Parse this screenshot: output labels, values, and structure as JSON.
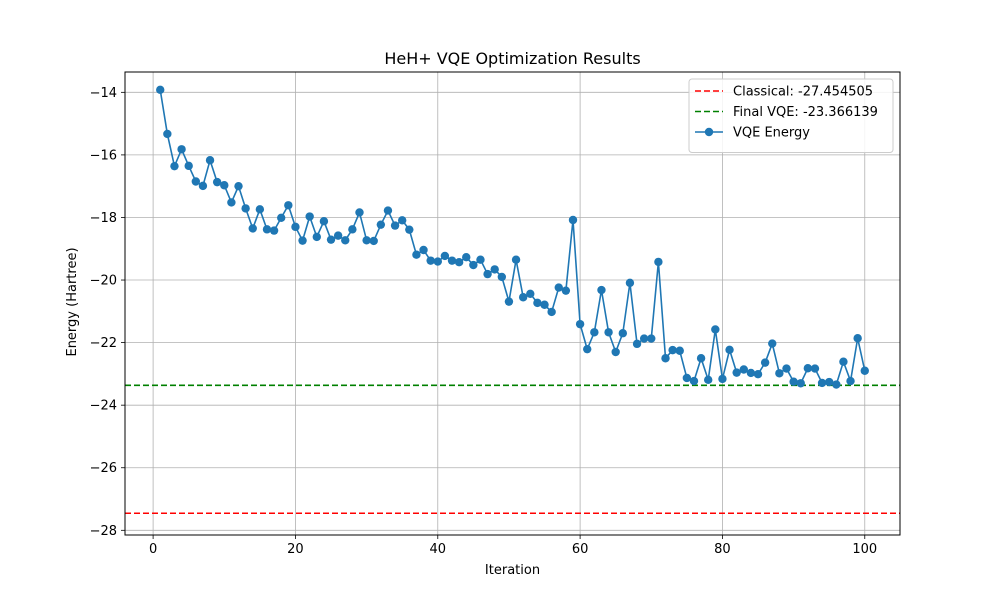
{
  "chart_data": {
    "type": "line",
    "title": "HeH+ VQE Optimization Results",
    "xlabel": "Iteration",
    "ylabel": "Energy (Hartree)",
    "xlim": [
      -3.95,
      104.95
    ],
    "ylim": [
      -28.15,
      -13.35
    ],
    "xticks": [
      0,
      20,
      40,
      60,
      80,
      100
    ],
    "yticks": [
      -28,
      -26,
      -24,
      -22,
      -20,
      -18,
      -16,
      -14
    ],
    "xtick_labels": [
      "0",
      "20",
      "40",
      "60",
      "80",
      "100"
    ],
    "ytick_labels": [
      "−28",
      "−26",
      "−24",
      "−22",
      "−20",
      "−18",
      "−16",
      "−14"
    ],
    "grid": true,
    "legend_position": "top-right",
    "series": [
      {
        "name": "VQE Energy",
        "color": "#1f77b4",
        "marker": "circle",
        "x": [
          1,
          2,
          3,
          4,
          5,
          6,
          7,
          8,
          9,
          10,
          11,
          12,
          13,
          14,
          15,
          16,
          17,
          18,
          19,
          20,
          21,
          22,
          23,
          24,
          25,
          26,
          27,
          28,
          29,
          30,
          31,
          32,
          33,
          34,
          35,
          36,
          37,
          38,
          39,
          40,
          41,
          42,
          43,
          44,
          45,
          46,
          47,
          48,
          49,
          50,
          51,
          52,
          53,
          54,
          55,
          56,
          57,
          58,
          59,
          60,
          61,
          62,
          63,
          64,
          65,
          66,
          67,
          68,
          69,
          70,
          71,
          72,
          73,
          74,
          75,
          76,
          77,
          78,
          79,
          80,
          81,
          82,
          83,
          84,
          85,
          86,
          87,
          88,
          89,
          90,
          91,
          92,
          93,
          94,
          95,
          96,
          97,
          98,
          99,
          100
        ],
        "y": [
          -13.92,
          -15.33,
          -16.36,
          -15.82,
          -16.35,
          -16.85,
          -16.99,
          -16.17,
          -16.87,
          -16.97,
          -17.52,
          -17.0,
          -17.71,
          -18.35,
          -17.74,
          -18.38,
          -18.42,
          -18.01,
          -17.61,
          -18.3,
          -18.74,
          -17.97,
          -18.62,
          -18.12,
          -18.71,
          -18.58,
          -18.73,
          -18.38,
          -17.84,
          -18.73,
          -18.75,
          -18.23,
          -17.78,
          -18.26,
          -18.09,
          -18.39,
          -19.19,
          -19.04,
          -19.38,
          -19.41,
          -19.23,
          -19.38,
          -19.43,
          -19.27,
          -19.52,
          -19.35,
          -19.81,
          -19.66,
          -19.9,
          -20.69,
          -19.35,
          -20.55,
          -20.44,
          -20.73,
          -20.79,
          -21.02,
          -20.24,
          -20.34,
          -18.08,
          -21.41,
          -22.21,
          -21.67,
          -20.32,
          -21.67,
          -22.3,
          -21.7,
          -20.09,
          -22.04,
          -21.87,
          -21.87,
          -19.42,
          -22.5,
          -22.24,
          -22.26,
          -23.13,
          -23.23,
          -22.5,
          -23.19,
          -21.58,
          -23.16,
          -22.23,
          -22.96,
          -22.86,
          -22.97,
          -23.01,
          -22.64,
          -22.03,
          -22.98,
          -22.83,
          -23.25,
          -23.3,
          -22.82,
          -22.83,
          -23.29,
          -23.26,
          -23.34,
          -22.61,
          -23.23,
          -21.86,
          -22.9
        ]
      }
    ],
    "reference_lines": [
      {
        "name": "Classical: -27.454505",
        "value": -27.454505,
        "color": "#ff0000",
        "style": "dashed"
      },
      {
        "name": "Final VQE: -23.366139",
        "value": -23.366139,
        "color": "#008000",
        "style": "dashed"
      }
    ]
  }
}
